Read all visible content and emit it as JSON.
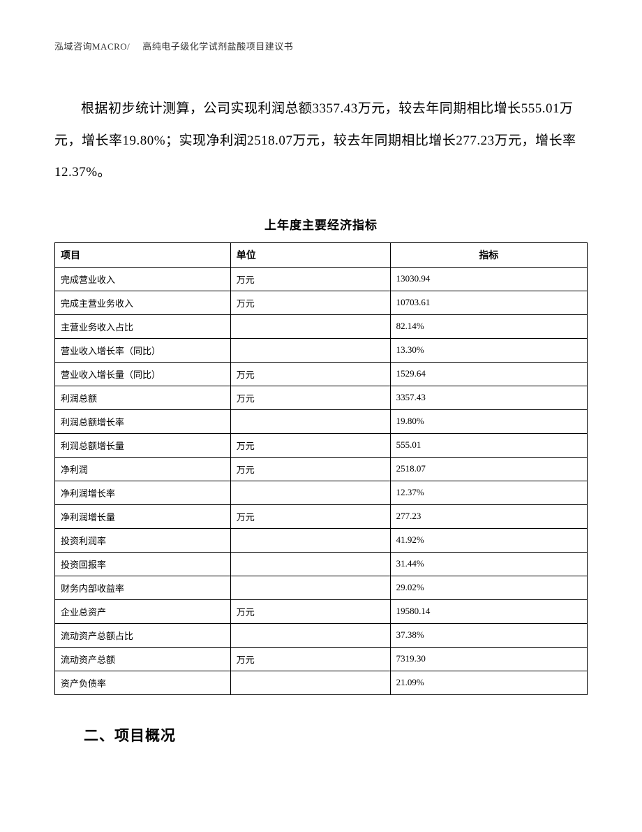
{
  "header": {
    "left": "泓域咨询MACRO/",
    "right": "高纯电子级化学试剂盐酸项目建议书"
  },
  "paragraph": "根据初步统计测算，公司实现利润总额3357.43万元，较去年同期相比增长555.01万元，增长率19.80%；实现净利润2518.07万元，较去年同期相比增长277.23万元，增长率12.37%。",
  "table": {
    "title": "上年度主要经济指标",
    "columns": [
      "项目",
      "单位",
      "指标"
    ],
    "rows": [
      [
        "完成营业收入",
        "万元",
        "13030.94"
      ],
      [
        "完成主营业务收入",
        "万元",
        "10703.61"
      ],
      [
        "主营业务收入占比",
        "",
        "82.14%"
      ],
      [
        "营业收入增长率（同比）",
        "",
        "13.30%"
      ],
      [
        "营业收入增长量（同比）",
        "万元",
        "1529.64"
      ],
      [
        "利润总额",
        "万元",
        "3357.43"
      ],
      [
        "利润总额增长率",
        "",
        "19.80%"
      ],
      [
        "利润总额增长量",
        "万元",
        "555.01"
      ],
      [
        "净利润",
        "万元",
        "2518.07"
      ],
      [
        "净利润增长率",
        "",
        "12.37%"
      ],
      [
        "净利润增长量",
        "万元",
        "277.23"
      ],
      [
        "投资利润率",
        "",
        "41.92%"
      ],
      [
        "投资回报率",
        "",
        "31.44%"
      ],
      [
        "财务内部收益率",
        "",
        "29.02%"
      ],
      [
        "企业总资产",
        "万元",
        "19580.14"
      ],
      [
        "流动资产总额占比",
        "",
        "37.38%"
      ],
      [
        "流动资产总额",
        "万元",
        "7319.30"
      ],
      [
        "资产负债率",
        "",
        "21.09%"
      ]
    ]
  },
  "section_heading": "二、项目概况"
}
